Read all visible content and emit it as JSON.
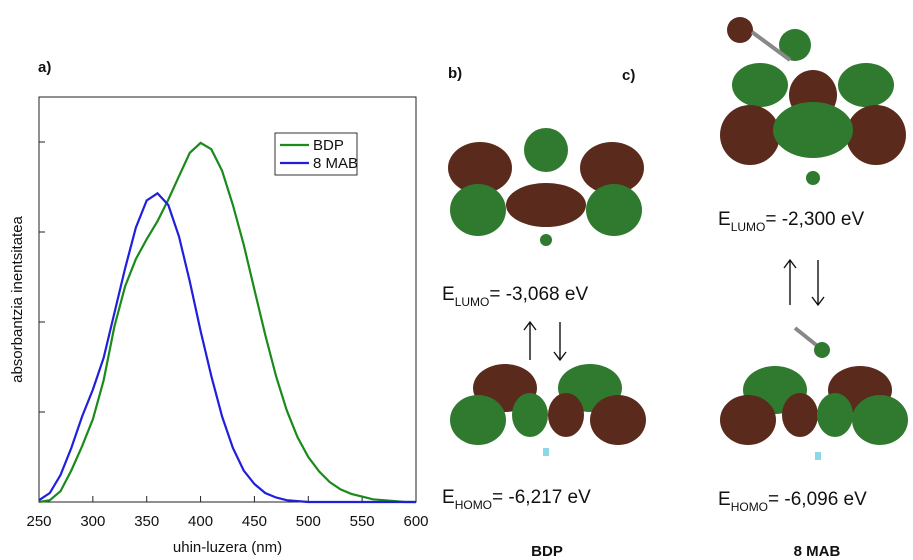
{
  "chart_data": {
    "type": "line",
    "panel_label": "a)",
    "x_label": "uhin-luzera (nm)",
    "y_label": "absorbantzia inentsitatea",
    "x": [
      250,
      260,
      270,
      280,
      290,
      300,
      310,
      320,
      330,
      340,
      350,
      360,
      370,
      380,
      390,
      400,
      410,
      420,
      430,
      440,
      450,
      460,
      470,
      480,
      490,
      500,
      510,
      520,
      530,
      540,
      550,
      560,
      570,
      580,
      590,
      600
    ],
    "series": [
      {
        "name": "BDP",
        "color": "#1a8a1a",
        "values": [
          0,
          0.02,
          0.12,
          0.35,
          0.62,
          0.92,
          1.35,
          1.95,
          2.4,
          2.7,
          2.92,
          3.12,
          3.36,
          3.62,
          3.88,
          3.99,
          3.92,
          3.68,
          3.3,
          2.86,
          2.36,
          1.86,
          1.4,
          1.02,
          0.72,
          0.5,
          0.34,
          0.22,
          0.14,
          0.09,
          0.06,
          0.03,
          0.02,
          0.01,
          0,
          0
        ]
      },
      {
        "name": "8 MAB",
        "color": "#1f1fdc",
        "values": [
          0.02,
          0.1,
          0.3,
          0.6,
          0.95,
          1.25,
          1.6,
          2.1,
          2.6,
          3.05,
          3.35,
          3.43,
          3.3,
          2.95,
          2.45,
          1.9,
          1.4,
          0.95,
          0.6,
          0.35,
          0.2,
          0.1,
          0.05,
          0.02,
          0.01,
          0,
          0,
          0,
          0,
          0,
          0,
          0,
          0,
          0,
          0,
          0
        ]
      }
    ],
    "xlim": [
      250,
      600
    ],
    "xticks": [
      250,
      300,
      350,
      400,
      450,
      500,
      550,
      600
    ],
    "ylim": [
      0,
      4.5
    ],
    "yticks": [
      0,
      1,
      2,
      3,
      4
    ],
    "legend": "upper right"
  },
  "panel_b": {
    "label": "b)",
    "name": "BDP",
    "lumo": {
      "symbol": "E",
      "subscript": "LUMO",
      "text": "= -3,068 eV"
    },
    "homo": {
      "symbol": "E",
      "subscript": "HOMO",
      "text": "= -6,217 eV"
    }
  },
  "panel_c": {
    "label": "c)",
    "name": "8 MAB",
    "lumo": {
      "symbol": "E",
      "subscript": "LUMO",
      "text": "= -2,300 eV"
    },
    "homo": {
      "symbol": "E",
      "subscript": "HOMO",
      "text": "= -6,096 eV"
    }
  }
}
